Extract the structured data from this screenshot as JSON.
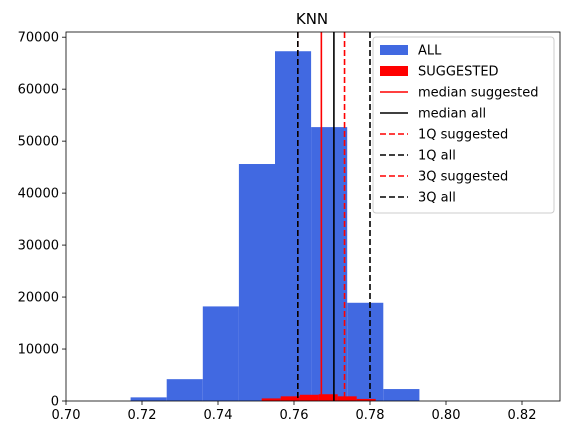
{
  "chart_data": {
    "type": "histogram",
    "title": "KNN",
    "xlabel": "",
    "ylabel": "",
    "xlim": [
      0.7,
      0.83
    ],
    "ylim": [
      0,
      71000
    ],
    "x_ticks": [
      0.7,
      0.72,
      0.74,
      0.76,
      0.78,
      0.8,
      0.82
    ],
    "x_tick_labels": [
      "0.70",
      "0.72",
      "0.74",
      "0.76",
      "0.78",
      "0.80",
      "0.82"
    ],
    "y_ticks": [
      0,
      10000,
      20000,
      30000,
      40000,
      50000,
      60000,
      70000
    ],
    "y_tick_labels": [
      "0",
      "10000",
      "20000",
      "30000",
      "40000",
      "50000",
      "60000",
      "70000"
    ],
    "grid": false,
    "legend_position": "top-right",
    "series": [
      {
        "name": "ALL",
        "color": "#4169e1",
        "bins": [
          {
            "x0": 0.717,
            "x1": 0.7265,
            "count": 700
          },
          {
            "x0": 0.7265,
            "x1": 0.736,
            "count": 4200
          },
          {
            "x0": 0.736,
            "x1": 0.7455,
            "count": 18200
          },
          {
            "x0": 0.7455,
            "x1": 0.755,
            "count": 45600
          },
          {
            "x0": 0.755,
            "x1": 0.7645,
            "count": 67300
          },
          {
            "x0": 0.7645,
            "x1": 0.774,
            "count": 52700
          },
          {
            "x0": 0.774,
            "x1": 0.7835,
            "count": 18900
          },
          {
            "x0": 0.7835,
            "x1": 0.793,
            "count": 2300
          }
        ]
      },
      {
        "name": "SUGGESTED",
        "color": "#ff0000",
        "bins": [
          {
            "x0": 0.7515,
            "x1": 0.7565,
            "count": 500
          },
          {
            "x0": 0.7565,
            "x1": 0.7615,
            "count": 900
          },
          {
            "x0": 0.7615,
            "x1": 0.7665,
            "count": 1200
          },
          {
            "x0": 0.7665,
            "x1": 0.7715,
            "count": 1300
          },
          {
            "x0": 0.7715,
            "x1": 0.7765,
            "count": 900
          },
          {
            "x0": 0.7765,
            "x1": 0.7815,
            "count": 400
          }
        ]
      }
    ],
    "vlines": [
      {
        "name": "median suggested",
        "x": 0.7672,
        "color": "#ff0000",
        "style": "solid"
      },
      {
        "name": "median all",
        "x": 0.7705,
        "color": "#000000",
        "style": "solid"
      },
      {
        "name": "1Q suggested",
        "x": 0.761,
        "color": "#ff0000",
        "style": "dashed"
      },
      {
        "name": "1Q all",
        "x": 0.761,
        "color": "#000000",
        "style": "dashed"
      },
      {
        "name": "3Q suggested",
        "x": 0.7733,
        "color": "#ff0000",
        "style": "dashed"
      },
      {
        "name": "3Q all",
        "x": 0.78,
        "color": "#000000",
        "style": "dashed"
      }
    ],
    "legend": [
      {
        "label": "ALL",
        "kind": "patch",
        "color": "#4169e1"
      },
      {
        "label": "SUGGESTED",
        "kind": "patch",
        "color": "#ff0000"
      },
      {
        "label": "median suggested",
        "kind": "line",
        "color": "#ff0000",
        "style": "solid"
      },
      {
        "label": "median all",
        "kind": "line",
        "color": "#000000",
        "style": "solid"
      },
      {
        "label": "1Q suggested",
        "kind": "line",
        "color": "#ff0000",
        "style": "dashed"
      },
      {
        "label": "1Q all",
        "kind": "line",
        "color": "#000000",
        "style": "dashed"
      },
      {
        "label": "3Q suggested",
        "kind": "line",
        "color": "#ff0000",
        "style": "dashed"
      },
      {
        "label": "3Q all",
        "kind": "line",
        "color": "#000000",
        "style": "dashed"
      }
    ]
  }
}
